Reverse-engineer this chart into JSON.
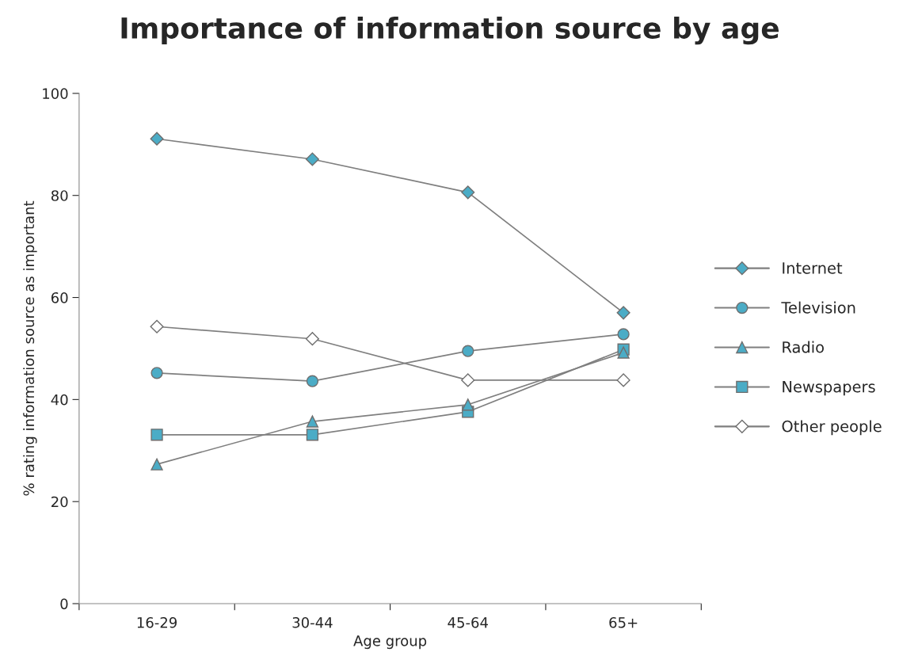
{
  "chart_data": {
    "type": "line",
    "title": "Importance of information source by age",
    "xlabel": "Age group",
    "ylabel": "% rating information source as important",
    "categories": [
      "16-29",
      "30-44",
      "45-64",
      "65+"
    ],
    "series": [
      {
        "name": "Internet",
        "color": "#4bacc6",
        "marker": "diamond",
        "values": [
          91.1,
          87.1,
          80.6,
          57.0
        ]
      },
      {
        "name": "Television",
        "color": "#4bacc6",
        "marker": "circle",
        "values": [
          45.2,
          43.6,
          49.5,
          52.8
        ]
      },
      {
        "name": "Radio",
        "color": "#4bacc6",
        "marker": "triangle",
        "values": [
          27.3,
          35.7,
          39.0,
          49.2
        ]
      },
      {
        "name": "Newspapers",
        "color": "#4bacc6",
        "marker": "square",
        "values": [
          33.1,
          33.1,
          37.6,
          49.8
        ]
      },
      {
        "name": "Other people",
        "color": "#ffffff",
        "marker": "diamond",
        "values": [
          54.3,
          51.9,
          43.8,
          43.8
        ]
      }
    ],
    "ylim": [
      0,
      100
    ],
    "yticks": [
      0,
      20,
      40,
      60,
      80,
      100
    ],
    "grid": false,
    "legend": "right",
    "line_style": "solid"
  }
}
